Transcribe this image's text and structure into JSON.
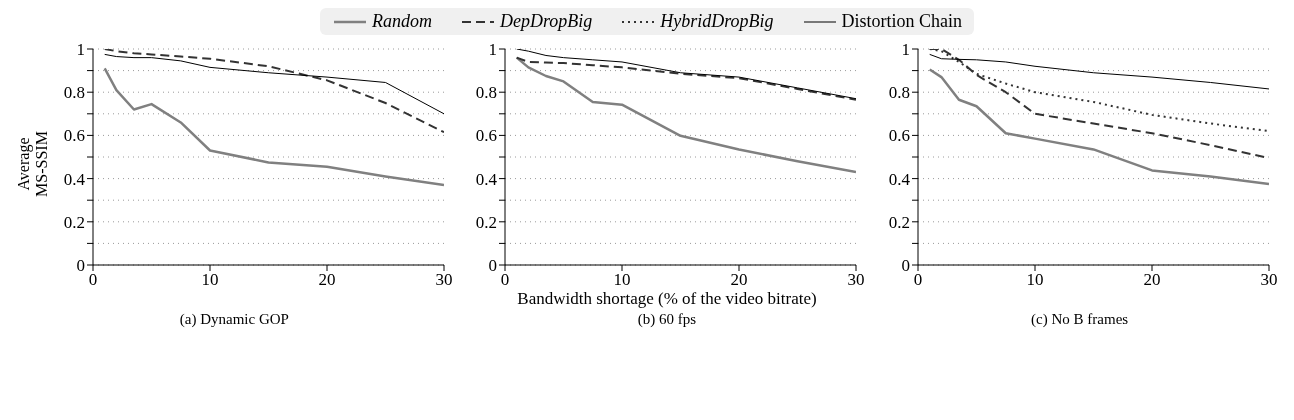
{
  "chart_data": [
    {
      "type": "line",
      "title": "(a) Dynamic GOP",
      "ylabel": "Average MS-SSIM",
      "x": [
        1,
        2,
        3.5,
        5,
        7.5,
        10,
        15,
        20,
        25,
        30
      ],
      "xlim": [
        0,
        30
      ],
      "xticks": [
        0,
        10,
        20,
        30
      ],
      "ylim": [
        0,
        1
      ],
      "yticks": [
        0,
        {
          "value": 0.1,
          "label": null
        },
        0.2,
        {
          "value": 0.3,
          "label": null
        },
        0.4,
        {
          "value": 0.5,
          "label": null
        },
        0.6,
        {
          "value": 0.7,
          "label": null
        },
        0.8,
        {
          "value": 0.9,
          "label": null
        },
        1
      ],
      "grid": "y",
      "marker": "none",
      "legend": "top",
      "series": [
        {
          "name": "Random",
          "color": "#808080",
          "line_style": "solid",
          "values": [
            0.91,
            0.81,
            0.72,
            0.745,
            0.66,
            0.53,
            0.475,
            0.455,
            0.41,
            0.37
          ]
        },
        {
          "name": "DepDropBig",
          "color": "#333333",
          "line_style": "dashed",
          "values": [
            1.0,
            0.99,
            0.98,
            0.975,
            0.965,
            0.955,
            0.92,
            0.855,
            0.75,
            0.615
          ]
        },
        {
          "name": "Distortion Chain",
          "color": "#000000",
          "line_style": "solid",
          "values": [
            0.975,
            0.965,
            0.96,
            0.96,
            0.945,
            0.915,
            0.89,
            0.87,
            0.845,
            0.7
          ]
        }
      ]
    },
    {
      "type": "line",
      "title": "(b) 60 fps",
      "xlabel": "Bandwidth shortage (% of the video bitrate)",
      "x": [
        1,
        2,
        3.5,
        5,
        7.5,
        10,
        15,
        20,
        25,
        30
      ],
      "xlim": [
        0,
        30
      ],
      "xticks": [
        0,
        10,
        20,
        30
      ],
      "ylim": [
        0,
        1
      ],
      "yticks": [
        0,
        {
          "value": 0.1,
          "label": null
        },
        0.2,
        {
          "value": 0.3,
          "label": null
        },
        0.4,
        {
          "value": 0.5,
          "label": null
        },
        0.6,
        {
          "value": 0.7,
          "label": null
        },
        0.8,
        {
          "value": 0.9,
          "label": null
        },
        1
      ],
      "grid": "y",
      "marker": "none",
      "legend": "top",
      "series": [
        {
          "name": "Random",
          "color": "#808080",
          "line_style": "solid",
          "values": [
            0.96,
            0.915,
            0.875,
            0.85,
            0.755,
            0.742,
            0.598,
            0.535,
            0.48,
            0.43
          ]
        },
        {
          "name": "DepDropBig",
          "color": "#333333",
          "line_style": "dashed",
          "values": [
            0.96,
            0.94,
            0.937,
            0.935,
            0.925,
            0.915,
            0.885,
            0.865,
            0.815,
            0.765
          ]
        },
        {
          "name": "Distortion Chain",
          "color": "#000000",
          "line_style": "solid",
          "values": [
            1.0,
            0.99,
            0.97,
            0.96,
            0.95,
            0.94,
            0.89,
            0.87,
            0.82,
            0.77
          ]
        }
      ]
    },
    {
      "type": "line",
      "title": "(c) No B frames",
      "x": [
        1,
        2,
        3.5,
        5,
        7.5,
        10,
        15,
        20,
        25,
        30
      ],
      "xlim": [
        0,
        30
      ],
      "xticks": [
        0,
        10,
        20,
        30
      ],
      "ylim": [
        0,
        1
      ],
      "yticks": [
        0,
        {
          "value": 0.1,
          "label": null
        },
        0.2,
        {
          "value": 0.3,
          "label": null
        },
        0.4,
        {
          "value": 0.5,
          "label": null
        },
        0.6,
        {
          "value": 0.7,
          "label": null
        },
        0.8,
        {
          "value": 0.9,
          "label": null
        },
        1
      ],
      "grid": "y",
      "marker": "none",
      "legend": "top",
      "series": [
        {
          "name": "Random",
          "color": "#808080",
          "line_style": "solid",
          "values": [
            0.905,
            0.87,
            0.765,
            0.735,
            0.61,
            0.585,
            0.535,
            0.438,
            0.41,
            0.375
          ]
        },
        {
          "name": "DepDropBig",
          "color": "#333333",
          "line_style": "dashed",
          "values": [
            1.0,
            1.0,
            0.95,
            0.88,
            0.8,
            0.7,
            0.655,
            0.61,
            0.555,
            0.495
          ]
        },
        {
          "name": "HybridDropBig",
          "color": "#333333",
          "line_style": "dotted",
          "values": [
            1.0,
            0.99,
            0.94,
            0.885,
            0.84,
            0.8,
            0.755,
            0.695,
            0.655,
            0.62
          ]
        },
        {
          "name": "Distortion Chain",
          "color": "#000000",
          "line_style": "solid",
          "values": [
            0.975,
            0.955,
            0.952,
            0.95,
            0.94,
            0.92,
            0.89,
            0.87,
            0.845,
            0.815
          ]
        }
      ]
    }
  ]
}
